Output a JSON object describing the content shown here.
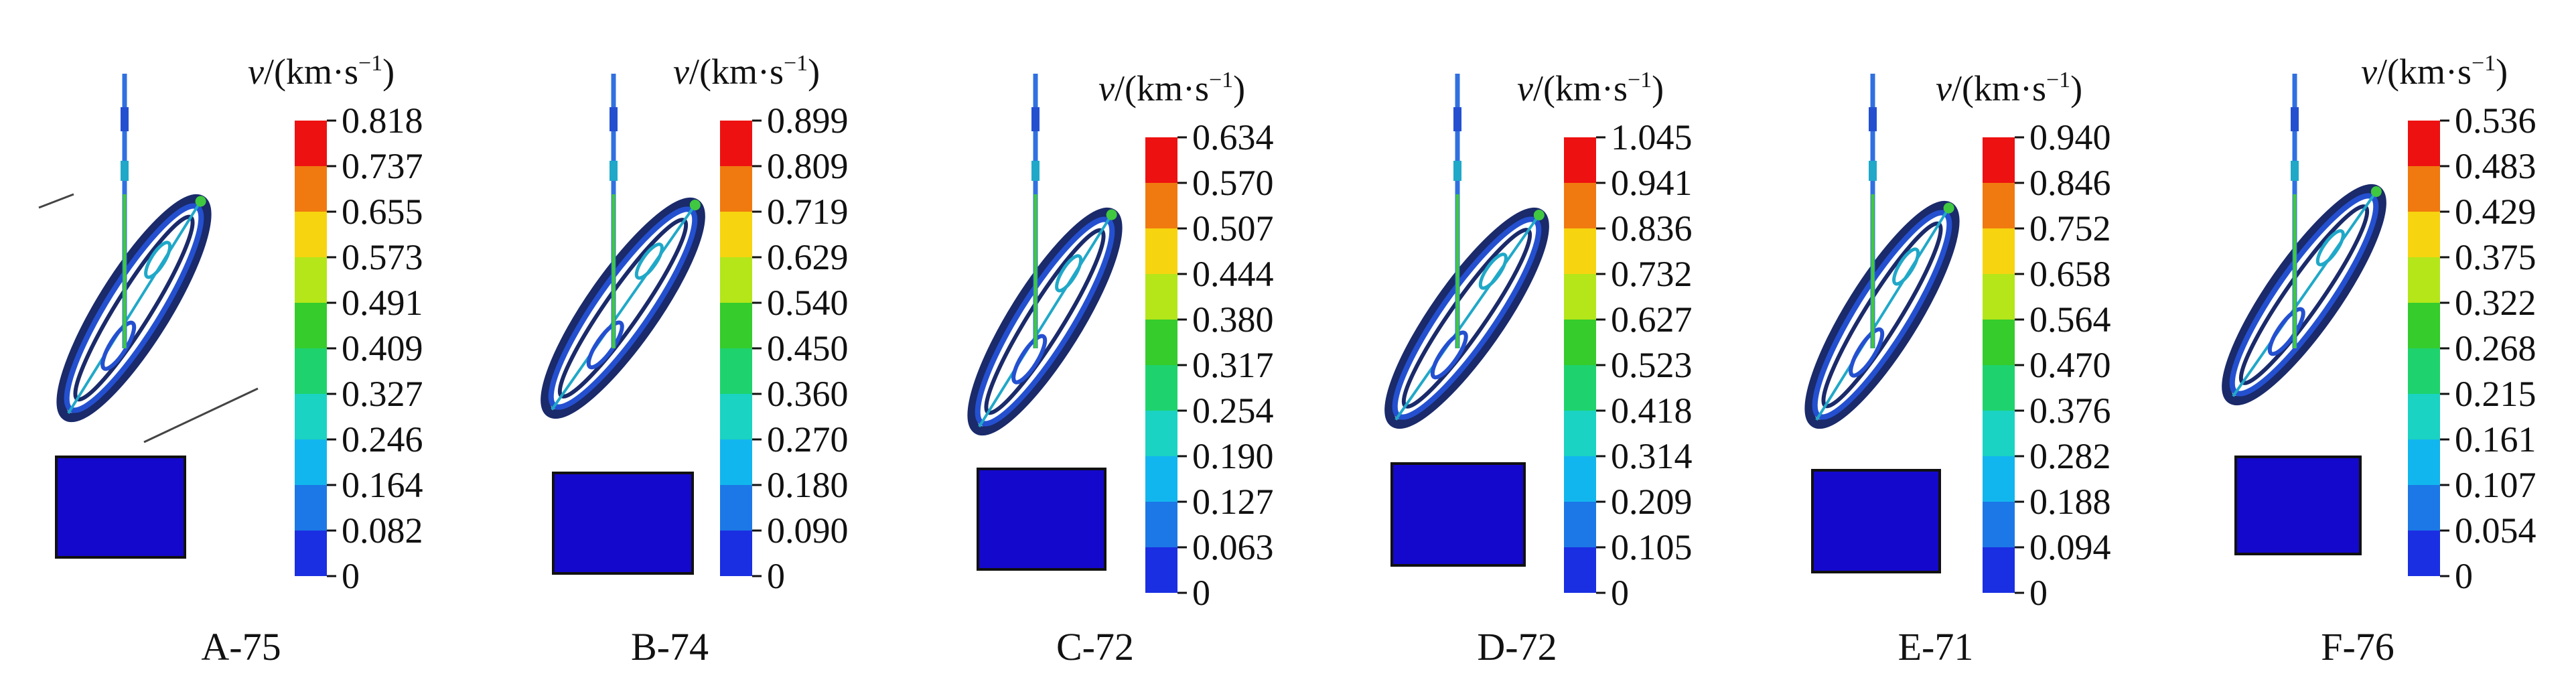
{
  "panels": [
    {
      "label": "A-75",
      "unit": "(km·s",
      "values": [
        "0.818",
        "0.737",
        "0.655",
        "0.573",
        "0.491",
        "0.409",
        "0.327",
        "0.246",
        "0.164",
        "0.082",
        "0"
      ]
    },
    {
      "label": "B-74",
      "unit": "(km·s",
      "values": [
        "0.899",
        "0.809",
        "0.719",
        "0.629",
        "0.540",
        "0.450",
        "0.360",
        "0.270",
        "0.180",
        "0.090",
        "0"
      ]
    },
    {
      "label": "C-72",
      "unit": "(km·s",
      "values": [
        "0.634",
        "0.570",
        "0.507",
        "0.444",
        "0.380",
        "0.317",
        "0.254",
        "0.190",
        "0.127",
        "0.063",
        "0"
      ]
    },
    {
      "label": "D-72",
      "unit": "(km·s",
      "values": [
        "1.045",
        "0.941",
        "0.836",
        "0.732",
        "0.627",
        "0.523",
        "0.418",
        "0.314",
        "0.209",
        "0.105",
        "0"
      ]
    },
    {
      "label": "E-71",
      "unit": "(km·s",
      "values": [
        "0.940",
        "0.846",
        "0.752",
        "0.658",
        "0.564",
        "0.470",
        "0.376",
        "0.282",
        "0.188",
        "0.094",
        "0"
      ]
    },
    {
      "label": "F-76",
      "unit": "(km·s",
      "values": [
        "0.536",
        "0.483",
        "0.429",
        "0.375",
        "0.322",
        "0.268",
        "0.215",
        "0.161",
        "0.107",
        "0.054",
        "0"
      ]
    }
  ],
  "unit_parts": {
    "symbol": "v",
    "slash": "/",
    "exponent": "−1",
    "close": ")"
  },
  "legend_colors": [
    "#ee1111",
    "#f07a10",
    "#f7d410",
    "#b4e61a",
    "#35cc2c",
    "#1ed36d",
    "#1ad3c2",
    "#12b6ee",
    "#1c78e6",
    "#1a2fe2"
  ],
  "target_color": "#1408cc",
  "body_colors": {
    "frame": "#1a2a6a",
    "blue": "#2450d0",
    "teal": "#20a8c8",
    "green": "#40c840",
    "rod": "#3070e0"
  }
}
